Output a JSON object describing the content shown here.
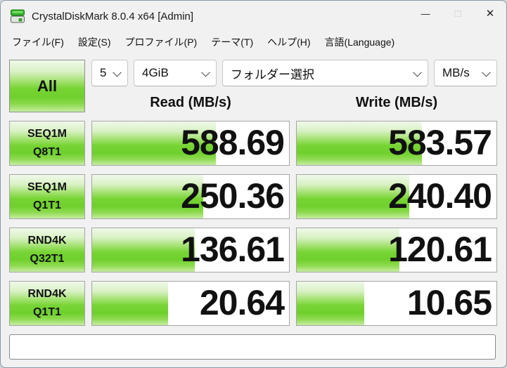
{
  "window": {
    "title": "CrystalDiskMark 8.0.4 x64 [Admin]",
    "controls": {
      "minimize": "—",
      "maximize": "□",
      "close": "✕"
    }
  },
  "menu": {
    "items": [
      "ファイル(F)",
      "設定(S)",
      "プロファイル(P)",
      "テーマ(T)",
      "ヘルプ(H)",
      "言語(Language)"
    ]
  },
  "toolbar": {
    "all_button": "All",
    "test_count": "5",
    "test_size": "4GiB",
    "folder_select": "フォルダー選択",
    "unit": "MB/s"
  },
  "columns": {
    "read": "Read (MB/s)",
    "write": "Write (MB/s)"
  },
  "rows": [
    {
      "type": "SEQ1M",
      "mode": "Q8T1",
      "read": "588.69",
      "write": "583.57"
    },
    {
      "type": "SEQ1M",
      "mode": "Q1T1",
      "read": "250.36",
      "write": "240.40"
    },
    {
      "type": "RND4K",
      "mode": "Q32T1",
      "read": "136.61",
      "write": "120.61"
    },
    {
      "type": "RND4K",
      "mode": "Q1T1",
      "read": "20.64",
      "write": "10.65"
    }
  ],
  "status_text": "",
  "colors": {
    "accent_green": "#76d335",
    "cell_border": "#a5a5a5",
    "window_bg": "#f1f1f1",
    "window_border": "#8b96a3",
    "text": "#111111"
  }
}
